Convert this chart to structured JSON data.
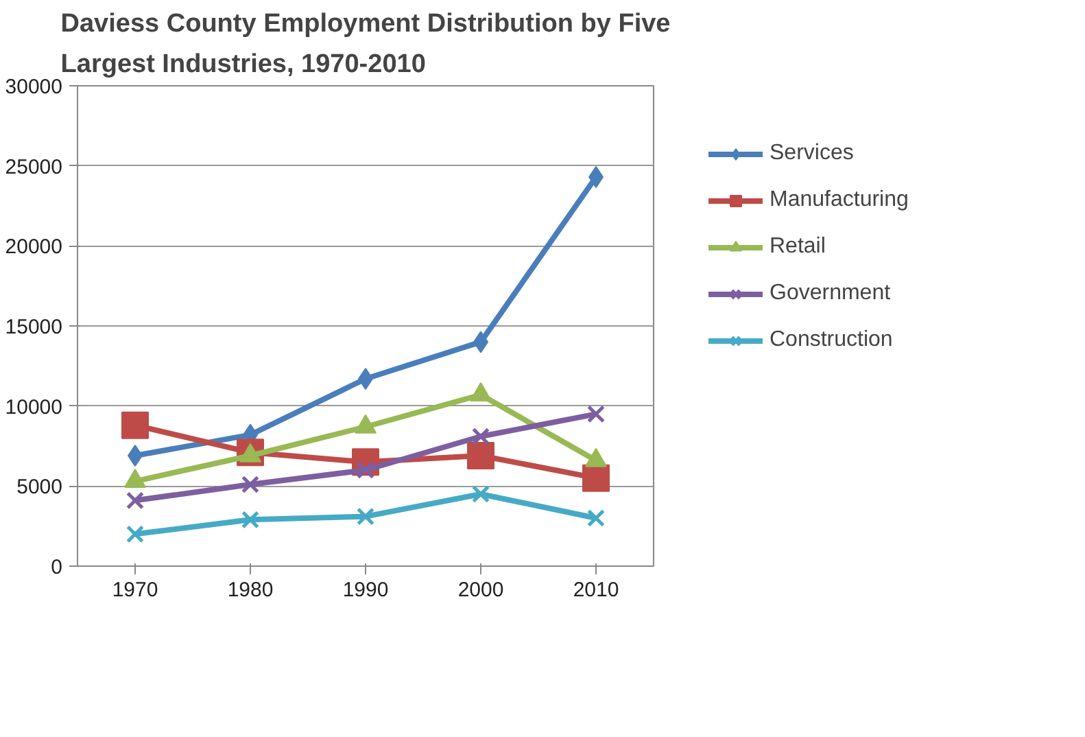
{
  "chart_data": {
    "type": "line",
    "title": "Daviess County Employment Distribution by Five Largest Industries, 1970-2010",
    "categories": [
      "1970",
      "1980",
      "1990",
      "2000",
      "2010"
    ],
    "series": [
      {
        "name": "Services",
        "color": "#4a7ebb",
        "marker": "diamond",
        "values": [
          6900,
          8200,
          11700,
          14000,
          24300
        ]
      },
      {
        "name": "Manufacturing",
        "color": "#be4b48",
        "marker": "square",
        "values": [
          8800,
          7100,
          6500,
          6900,
          5500
        ]
      },
      {
        "name": "Retail",
        "color": "#98b954",
        "marker": "triangle",
        "values": [
          5300,
          6900,
          8700,
          10700,
          6600
        ]
      },
      {
        "name": "Government",
        "color": "#7d5fa0",
        "marker": "cross",
        "values": [
          4100,
          5100,
          6000,
          8100,
          9500
        ]
      },
      {
        "name": "Construction",
        "color": "#46aac5",
        "marker": "cross",
        "values": [
          2000,
          2900,
          3100,
          4500,
          3000
        ]
      }
    ],
    "ylim": [
      0,
      30000
    ],
    "yticks": [
      0,
      5000,
      10000,
      15000,
      20000,
      25000,
      30000
    ],
    "grid": "y",
    "legend": "right"
  }
}
